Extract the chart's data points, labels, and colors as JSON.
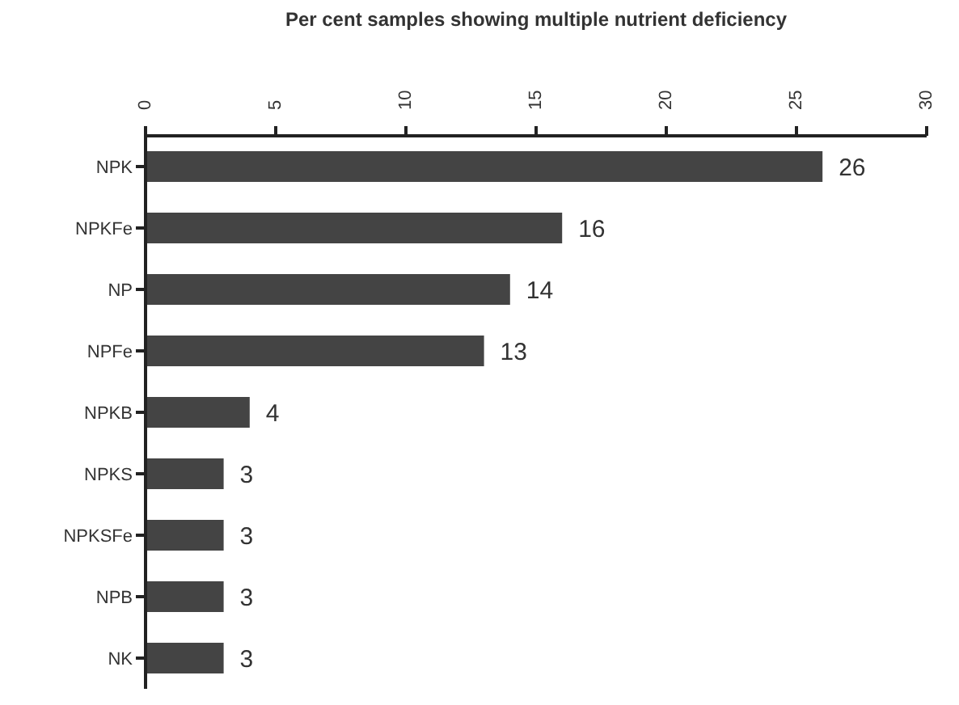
{
  "chart_data": {
    "type": "bar",
    "orientation": "horizontal",
    "xlabel": "Per cent samples showing multiple nutrient deficiency",
    "categories": [
      "NPK",
      "NPKFe",
      "NP",
      "NPFe",
      "NPKB",
      "NPKS",
      "NPKSFe",
      "NPB",
      "NK"
    ],
    "values": [
      26,
      16,
      14,
      13,
      4,
      3,
      3,
      3,
      3
    ],
    "color": "#444444",
    "xlim": [
      0,
      30
    ],
    "xticks": [
      0,
      5,
      10,
      15,
      20,
      25,
      30
    ],
    "grid": false,
    "data_labels": true
  }
}
